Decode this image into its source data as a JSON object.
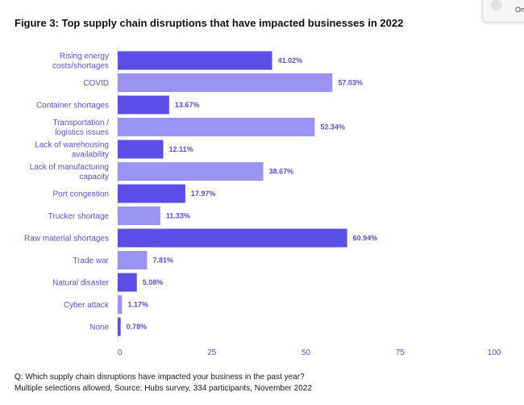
{
  "title": "Figure 3: Top supply chain disruptions that have impacted businesses in 2022",
  "popup": {
    "text": "On"
  },
  "footnote": {
    "line1": "Q: Which supply chain disruptions have impacted your business in the past year?",
    "line2": "Multiple selections allowed, Source: Hubs survey, 334 participants, November 2022"
  },
  "colors": {
    "dark_bar": "#5b4fe8",
    "light_bar": "#9b94f2",
    "label": "#5b4fe0",
    "axis_line": "#dddddd"
  },
  "chart_data": {
    "type": "bar",
    "orientation": "horizontal",
    "title": "Figure 3: Top supply chain disruptions that have impacted businesses in 2022",
    "xlabel": "",
    "ylabel": "",
    "xlim": [
      0,
      100
    ],
    "xticks": [
      0,
      25,
      50,
      75,
      100
    ],
    "grid": false,
    "categories": [
      [
        "Rising energy",
        "costs/shortages"
      ],
      [
        "COVID"
      ],
      [
        "Container shortages"
      ],
      [
        "Transportation /",
        "logistics issues"
      ],
      [
        "Lack of warehousing",
        "availability"
      ],
      [
        "Lack of manufacturing",
        "capacity"
      ],
      [
        "Port congestion"
      ],
      [
        "Trucker shortage"
      ],
      [
        "Raw material shortages"
      ],
      [
        "Trade war"
      ],
      [
        "Natural disaster"
      ],
      [
        "Cyber attack"
      ],
      [
        "None"
      ]
    ],
    "values": [
      41.02,
      57.03,
      13.67,
      52.34,
      12.11,
      38.67,
      17.97,
      11.33,
      60.94,
      7.81,
      5.08,
      1.17,
      0.78
    ],
    "value_labels": [
      "41.02%",
      "57.03%",
      "13.67%",
      "52.34%",
      "12.11%",
      "38.67%",
      "17.97%",
      "11.33%",
      "60.94%",
      "7.81%",
      "5.08%",
      "1.17%",
      "0.78%"
    ]
  }
}
